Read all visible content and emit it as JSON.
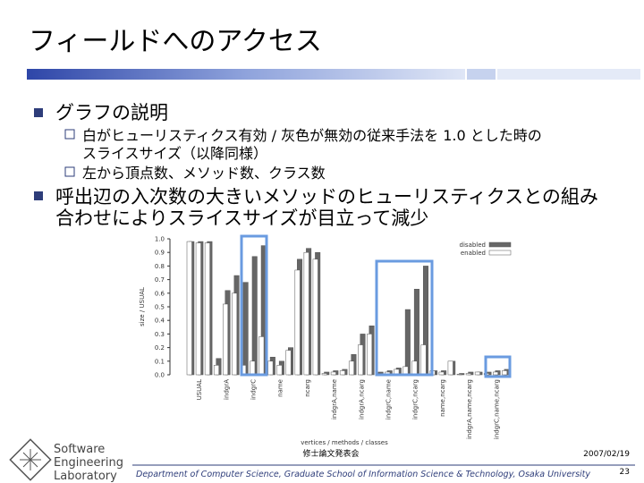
{
  "slide": {
    "title": "フィールドへのアクセス",
    "bullets": [
      {
        "text": "グラフの説明",
        "items": [
          [
            "白がヒューリスティクス有効 / 灰色が無効の従来手法を 1.0 とした時の",
            "スライスサイズ（以降同様）"
          ],
          [
            "左から頂点数、メソッド数、クラス数"
          ]
        ]
      },
      {
        "lines": [
          "呼出辺の入次数の大きいメソッドのヒューリスティクスとの組み",
          "合わせによりスライスサイズが目立って減少"
        ]
      }
    ],
    "logo": [
      "Software",
      "Engineering",
      "Laboratory"
    ],
    "event": "修士論文発表会",
    "date": "2007/02/19",
    "affiliation": "Department of Computer Science, Graduate School of Information Science & Technology, Osaka University",
    "page": "23"
  },
  "chart_data": {
    "type": "bar",
    "ylabel": "size / USUAL",
    "xlabel": "vertices / methods / classes",
    "categories": [
      null,
      "USUAL",
      null,
      null,
      "indgrA",
      null,
      null,
      "indgrC",
      null,
      null,
      "name",
      null,
      null,
      "ncarg",
      null,
      null,
      "indgrA,name",
      null,
      null,
      "indgrA,ncarg",
      null,
      null,
      "indgrC,name",
      null,
      null,
      "indgrC,ncarg",
      null,
      null,
      "name,ncarg",
      null,
      null,
      "indgrA,name,ncarg",
      null,
      null,
      "indgrC,name,ncarg",
      null
    ],
    "series": [
      {
        "name": "disabled",
        "color": "#666666",
        "values": [
          0.98,
          0.98,
          0.98,
          0.12,
          0.62,
          0.73,
          0.68,
          0.87,
          0.95,
          0.13,
          0.1,
          0.2,
          0.85,
          0.93,
          0.9,
          0.02,
          0.03,
          0.04,
          0.15,
          0.3,
          0.36,
          0.02,
          0.03,
          0.05,
          0.48,
          0.63,
          0.8,
          0.03,
          0.03,
          0.1,
          0.01,
          0.02,
          0.02,
          0.02,
          0.03,
          0.04
        ]
      },
      {
        "name": "enabled",
        "color": "#ffffff",
        "values": [
          0.98,
          0.97,
          0.97,
          0.07,
          0.52,
          0.6,
          0.07,
          0.1,
          0.28,
          0.1,
          0.07,
          0.18,
          0.77,
          0.9,
          0.85,
          0.01,
          0.02,
          0.03,
          0.1,
          0.22,
          0.3,
          0.01,
          0.02,
          0.04,
          0.06,
          0.1,
          0.22,
          0.03,
          0.02,
          0.1,
          0.005,
          0.01,
          0.02,
          0.01,
          0.02,
          0.03
        ]
      }
    ],
    "ylim": [
      0,
      1
    ],
    "yticks": [
      {
        "value": 0,
        "label": "0.0"
      },
      0.1,
      0.2,
      0.3,
      0.4,
      0.5,
      0.6,
      0.7,
      0.8,
      0.9,
      {
        "value": 1,
        "label": "1.0"
      }
    ],
    "legend": "top-right"
  }
}
